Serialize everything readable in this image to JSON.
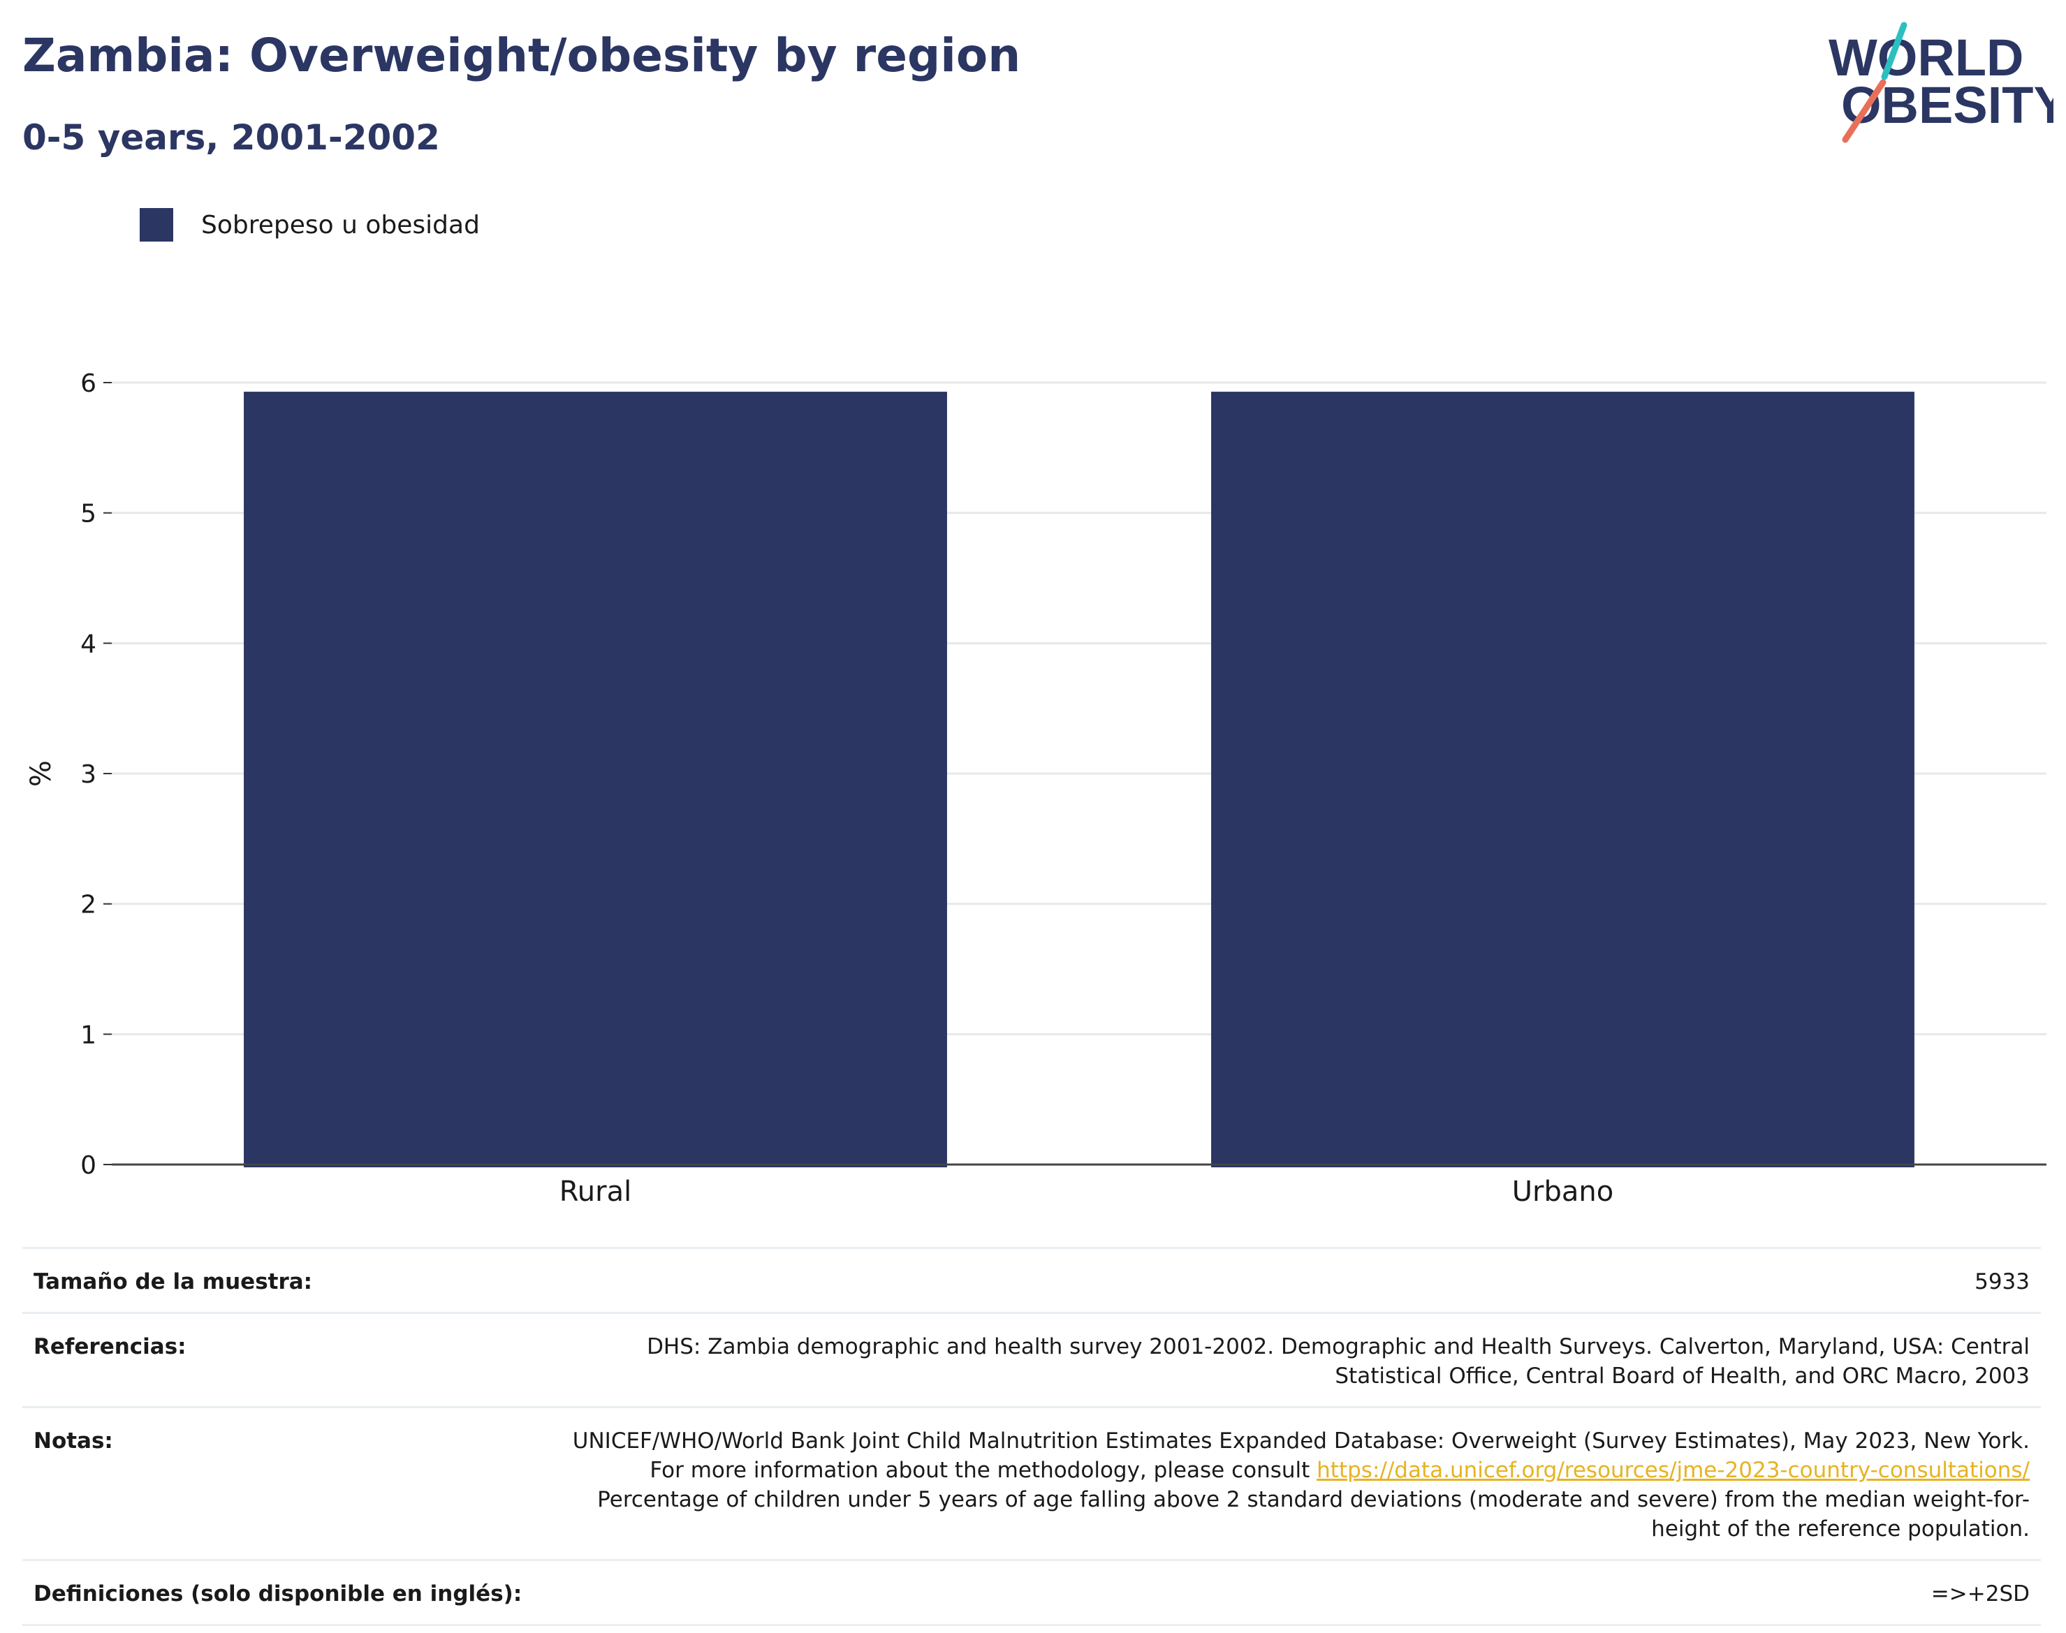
{
  "header": {
    "title": "Zambia: Overweight/obesity by region",
    "subtitle": "0-5 years, 2001-2002"
  },
  "logo": {
    "line1": "WORLD",
    "line2": "OBESITY",
    "colors": {
      "text": "#2b3663",
      "teal": "#2bbfc0",
      "coral": "#e8705a"
    }
  },
  "legend": {
    "label": "Sobrepeso u obesidad",
    "color": "#2b3663"
  },
  "chart_data": {
    "type": "bar",
    "categories": [
      "Rural",
      "Urbano"
    ],
    "series": [
      {
        "name": "Sobrepeso u obesidad",
        "values": [
          5.93,
          5.93
        ],
        "color": "#2b3663"
      }
    ],
    "xlabel": "",
    "ylabel": "%",
    "ylim": [
      0,
      6
    ],
    "yticks": [
      0,
      1,
      2,
      3,
      4,
      5,
      6
    ],
    "grid": true,
    "legend_position": "top-left"
  },
  "info": {
    "sample_size": {
      "label": "Tamaño de la muestra:",
      "value": "5933"
    },
    "references": {
      "label": "Referencias:",
      "value": "DHS: Zambia demographic and health survey 2001-2002. Demographic and Health Surveys. Calverton, Maryland, USA: Central Statistical Office, Central Board of Health, and ORC Macro, 2003"
    },
    "notes": {
      "label": "Notas:",
      "text_before": "UNICEF/WHO/World Bank Joint Child Malnutrition Estimates Expanded Database: Overweight (Survey Estimates), May 2023, New York. For more information about the methodology, please consult ",
      "link": "https://data.unicef.org/resources/jme-2023-country-consultations/",
      "text_after": " Percentage of children under 5 years of age falling above 2 standard deviations (moderate and severe) from the median weight-for-height of the reference population."
    },
    "definitions": {
      "label": "Definiciones (solo disponible en inglés):",
      "value": "=>+2SD"
    }
  }
}
